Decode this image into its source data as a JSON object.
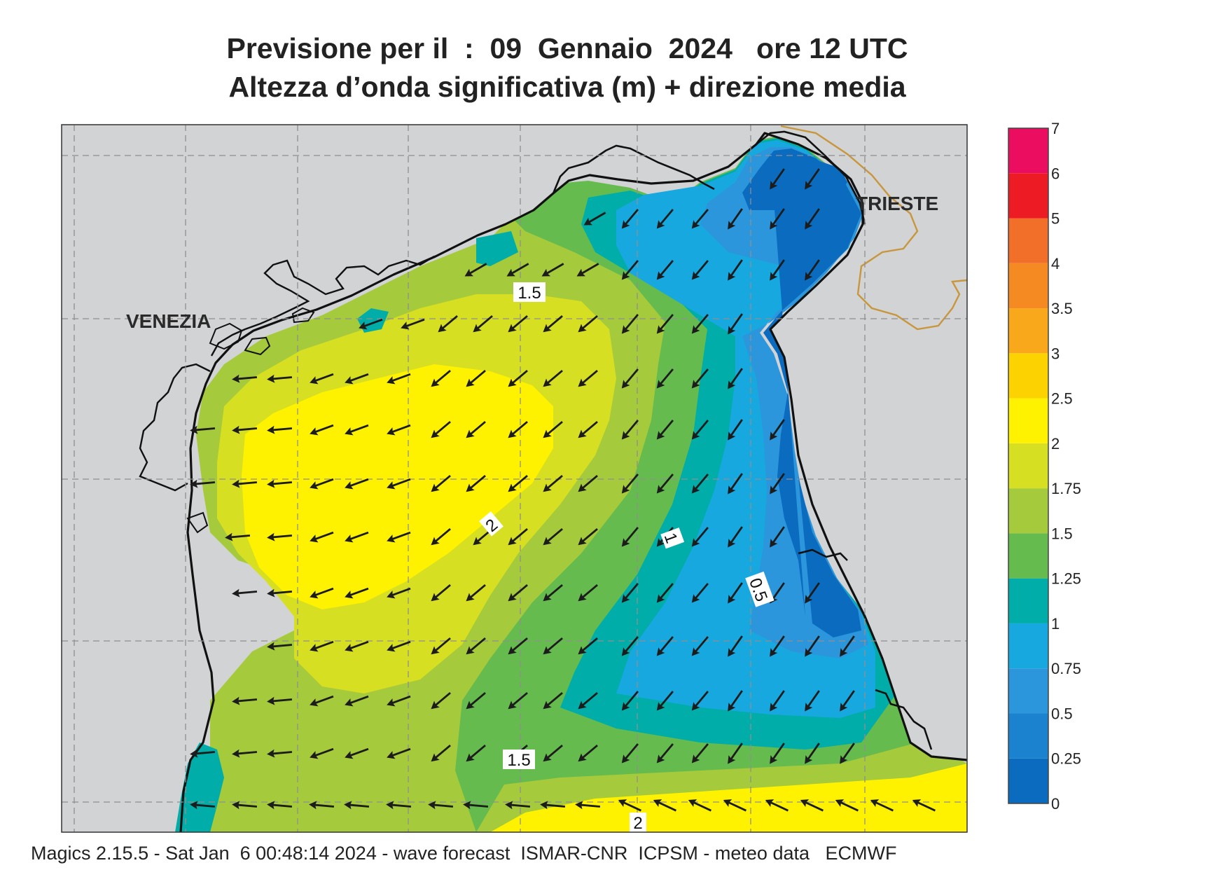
{
  "title": {
    "line1": "Previsione per il  :  09  Gennaio  2024   ore 12 UTC",
    "line2": "Altezza d’onda significativa (m) + direzione media"
  },
  "cities": {
    "venezia": "VENEZIA",
    "trieste": "TRIESTE"
  },
  "contour_labels": [
    {
      "id": "upper-1-5",
      "text": "1.5"
    },
    {
      "id": "center-2",
      "text": "2"
    },
    {
      "id": "east-1",
      "text": "1"
    },
    {
      "id": "east-0-5",
      "text": "0.5"
    },
    {
      "id": "lower-1-5",
      "text": "1.5"
    },
    {
      "id": "bottom-2",
      "text": "2"
    }
  ],
  "legend": {
    "levels": [
      "0",
      "0.25",
      "0.5",
      "0.75",
      "1",
      "1.25",
      "1.5",
      "1.75",
      "2",
      "2.5",
      "3",
      "3.5",
      "4",
      "5",
      "6",
      "7"
    ],
    "colors": [
      "#0a6bbf",
      "#1a82cf",
      "#2b96dc",
      "#17a8e0",
      "#00ada8",
      "#66bb4f",
      "#a5ca3b",
      "#d7df22",
      "#fff200",
      "#fcd300",
      "#f9a81b",
      "#f58a22",
      "#f26f2a",
      "#ed1c24",
      "#ea0d60"
    ]
  },
  "colors": {
    "land": "#d2d3d5",
    "coast": "#111111",
    "border": "#c8963c",
    "arrow": "#1c1c1c",
    "grid": "#8f8f8f"
  },
  "footer": "Magics 2.15.5 - Sat Jan  6 00:48:14 2024 - wave forecast  ISMAR-CNR  ICPSM - meteo data   ECMWF"
}
